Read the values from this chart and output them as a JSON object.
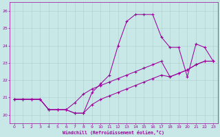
{
  "xlabel": "Windchill (Refroidissement éolien,°C)",
  "xlim": [
    -0.5,
    23.5
  ],
  "ylim": [
    19.5,
    26.5
  ],
  "yticks": [
    20,
    21,
    22,
    23,
    24,
    25,
    26
  ],
  "xticks": [
    0,
    1,
    2,
    3,
    4,
    5,
    6,
    7,
    8,
    9,
    10,
    11,
    12,
    13,
    14,
    15,
    16,
    17,
    18,
    19,
    20,
    21,
    22,
    23
  ],
  "bg_color": "#c8e8e8",
  "line_color": "#990099",
  "grid_color": "#b0cccc",
  "line1_x": [
    0,
    1,
    2,
    3,
    4,
    5,
    6,
    7,
    8,
    9,
    10,
    11,
    12,
    13,
    14,
    15,
    16,
    17,
    18,
    19,
    20,
    21,
    22,
    23
  ],
  "line1_y": [
    20.9,
    20.9,
    20.9,
    20.9,
    20.3,
    20.3,
    20.3,
    20.1,
    20.1,
    21.3,
    21.8,
    22.3,
    24.0,
    25.4,
    25.8,
    25.8,
    25.8,
    24.5,
    23.9,
    23.9,
    22.2,
    24.1,
    23.9,
    23.1
  ],
  "line2_x": [
    0,
    1,
    2,
    3,
    4,
    5,
    6,
    7,
    8,
    9,
    10,
    11,
    12,
    13,
    14,
    15,
    16,
    17,
    18,
    19,
    20,
    21,
    22,
    23
  ],
  "line2_y": [
    20.9,
    20.9,
    20.9,
    20.9,
    20.3,
    20.3,
    20.3,
    20.7,
    21.2,
    21.5,
    21.7,
    21.9,
    22.1,
    22.3,
    22.5,
    22.7,
    22.9,
    23.1,
    22.2,
    22.4,
    22.6,
    22.9,
    23.1,
    23.1
  ],
  "line3_x": [
    0,
    1,
    2,
    3,
    4,
    5,
    6,
    7,
    8,
    9,
    10,
    11,
    12,
    13,
    14,
    15,
    16,
    17,
    18,
    19,
    20,
    21,
    22,
    23
  ],
  "line3_y": [
    20.9,
    20.9,
    20.9,
    20.9,
    20.3,
    20.3,
    20.3,
    20.1,
    20.1,
    20.6,
    20.9,
    21.1,
    21.3,
    21.5,
    21.7,
    21.9,
    22.1,
    22.3,
    22.2,
    22.4,
    22.6,
    22.9,
    23.1,
    23.1
  ]
}
